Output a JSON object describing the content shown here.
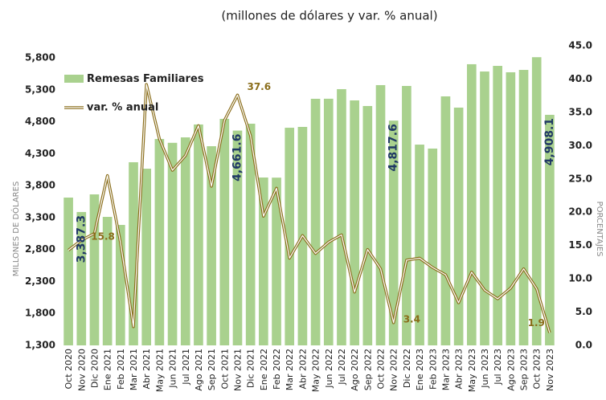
{
  "chart_data": {
    "type": "bar-line",
    "title": "(millones de dólares y var. % anual)",
    "ylabel": "MILLONES DE DÓLARES",
    "y2label": "PORCENTAJES",
    "legend": "upper left",
    "categories": [
      "Oct 2020",
      "Nov 2020",
      "Dic 2020",
      "Ene 2021",
      "Feb 2021",
      "Mar 2021",
      "Abr 2021",
      "May 2021",
      "Jun 2021",
      "Jul 2021",
      "Ago 2021",
      "Sep 2021",
      "Oct 2021",
      "Nov 2021",
      "Dic 2021",
      "Ene 2022",
      "Feb 2022",
      "Mar 2022",
      "Abr 2022",
      "May 2022",
      "Jun 2022",
      "Jul 2022",
      "Ago 2022",
      "Sep 2022",
      "Oct 2022",
      "Nov 2022",
      "Dic 2022",
      "Ene 2023",
      "Feb 2023",
      "Mar 2023",
      "Abr 2023",
      "May 2023",
      "Jun 2023",
      "Jul 2023",
      "Ago 2023",
      "Sep 2023",
      "Oct 2023",
      "Nov 2023"
    ],
    "series": [
      {
        "name": "Remesas Familiares",
        "color": "#a9d18e",
        "type": "bar",
        "values": [
          3613,
          3387.3,
          3663,
          3311,
          3185,
          4166,
          4065,
          4530,
          4470,
          4555,
          4757,
          4417,
          4845,
          4661.6,
          4769,
          3927,
          3925,
          4706,
          4719,
          5159,
          5160,
          5310,
          5134,
          5046,
          5373,
          4817.6,
          5360,
          4442,
          4380,
          5197,
          5021,
          5700,
          5586,
          5674,
          5574,
          5611,
          5810,
          4908.1
        ],
        "value_labels": [
          null,
          "3,387.3",
          null,
          null,
          null,
          null,
          null,
          null,
          null,
          null,
          null,
          null,
          null,
          "4,661.6",
          null,
          null,
          null,
          null,
          null,
          null,
          null,
          null,
          null,
          null,
          null,
          "4,817.6",
          null,
          null,
          null,
          null,
          null,
          null,
          null,
          null,
          null,
          null,
          null,
          "4,908.1"
        ]
      },
      {
        "name": "var. % anual",
        "color": "#8a6d1a",
        "type": "line",
        "axis": "y2",
        "values": [
          14.3,
          15.8,
          16.8,
          25.5,
          15.5,
          2.8,
          39.2,
          31.0,
          26.3,
          28.5,
          33.0,
          23.9,
          33.8,
          37.6,
          31.5,
          19.4,
          23.6,
          13.1,
          16.5,
          13.8,
          15.5,
          16.6,
          8.0,
          14.4,
          11.5,
          3.4,
          12.8,
          13.1,
          11.7,
          10.6,
          6.4,
          11.0,
          8.3,
          7.0,
          8.6,
          11.5,
          8.5,
          1.9
        ],
        "value_labels": [
          null,
          "15.8",
          null,
          null,
          null,
          null,
          null,
          null,
          null,
          null,
          null,
          null,
          null,
          "37.6",
          null,
          null,
          null,
          null,
          null,
          null,
          null,
          null,
          null,
          null,
          null,
          "3.4",
          null,
          null,
          null,
          null,
          null,
          null,
          null,
          null,
          null,
          null,
          null,
          "1.9"
        ]
      }
    ],
    "ylim": [
      1300,
      5800
    ],
    "yticks": [
      {
        "value": 1300,
        "label": "1,300"
      },
      {
        "value": 1800,
        "label": "1,800"
      },
      {
        "value": 2300,
        "label": "2,300"
      },
      {
        "value": 2800,
        "label": "2,800"
      },
      {
        "value": 3300,
        "label": "3,300"
      },
      {
        "value": 3800,
        "label": "3,800"
      },
      {
        "value": 4300,
        "label": "4,300"
      },
      {
        "value": 4800,
        "label": "4,800"
      },
      {
        "value": 5300,
        "label": "5,300"
      },
      {
        "value": 5800,
        "label": "5,800"
      }
    ],
    "y2lim": [
      0,
      45
    ],
    "y2ticks": [
      {
        "value": 0,
        "label": "0.0"
      },
      {
        "value": 5,
        "label": "5.0"
      },
      {
        "value": 10,
        "label": "10.0"
      },
      {
        "value": 15,
        "label": "15.0"
      },
      {
        "value": 20,
        "label": "20.0"
      },
      {
        "value": 25,
        "label": "25.0"
      },
      {
        "value": 30,
        "label": "30.0"
      },
      {
        "value": 35,
        "label": "35.0"
      },
      {
        "value": 40,
        "label": "40.0"
      },
      {
        "value": 45,
        "label": "45.0"
      }
    ],
    "grid": false
  }
}
